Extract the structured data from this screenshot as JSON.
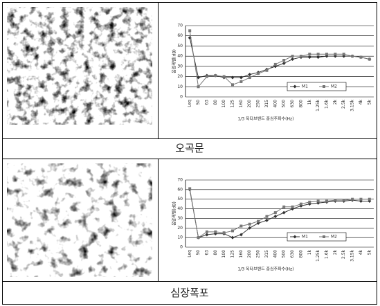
{
  "table": {
    "captions": [
      "오곡문",
      "심장폭포"
    ]
  },
  "chart_data": [
    {
      "type": "line",
      "y_label": "음압레벨(dB)",
      "x_label": "1/3 옥타브밴드 중심주파수(Hz)",
      "categories": [
        "Leq",
        "50",
        "63",
        "80",
        "100",
        "125",
        "160",
        "200",
        "250",
        "315",
        "400",
        "500",
        "630",
        "800",
        "1k",
        "1.25k",
        "1.6k",
        "2k",
        "2.5k",
        "3.15k",
        "4k",
        "5k"
      ],
      "ylim": [
        0,
        70
      ],
      "yticks": [
        0,
        10,
        20,
        30,
        40,
        50,
        60,
        70
      ],
      "grid": true,
      "legend": "lower-right",
      "series": [
        {
          "name": "M1",
          "color": "#333333",
          "marker": "diamond",
          "values": [
            58,
            19,
            21,
            21,
            19,
            19,
            19,
            22,
            24,
            27,
            30,
            33,
            37,
            39,
            39,
            39,
            40,
            40,
            40,
            40,
            39,
            37
          ]
        },
        {
          "name": "M2",
          "color": "#777777",
          "marker": "square",
          "values": [
            65,
            10,
            20,
            21,
            20,
            12,
            15,
            19,
            23,
            26,
            32,
            36,
            40,
            40,
            42,
            42,
            42,
            42,
            42,
            40,
            39,
            37
          ]
        }
      ]
    },
    {
      "type": "line",
      "y_label": "음압레벨(dB)",
      "x_label": "1/3 옥타브밴드 중심주파수(Hz)",
      "categories": [
        "Leq",
        "50",
        "63",
        "80",
        "100",
        "125",
        "160",
        "200",
        "250",
        "315",
        "400",
        "500",
        "630",
        "800",
        "1k",
        "1.25k",
        "1.6k",
        "2k",
        "2.5k",
        "3.15k",
        "4k",
        "5k"
      ],
      "ylim": [
        0,
        70
      ],
      "yticks": [
        0,
        10,
        20,
        30,
        40,
        50,
        60,
        70
      ],
      "grid": true,
      "legend": "lower-right",
      "series": [
        {
          "name": "M1",
          "color": "#333333",
          "marker": "diamond",
          "values": [
            60,
            10,
            13,
            14,
            14,
            10,
            13,
            20,
            25,
            28,
            32,
            36,
            40,
            43,
            45,
            46,
            47,
            48,
            48,
            49,
            48,
            48
          ]
        },
        {
          "name": "M2",
          "color": "#777777",
          "marker": "square",
          "values": [
            61,
            10,
            16,
            16,
            15,
            17,
            22,
            24,
            27,
            32,
            36,
            42,
            42,
            45,
            47,
            48,
            48,
            49,
            49,
            50,
            50,
            50
          ]
        }
      ]
    }
  ]
}
